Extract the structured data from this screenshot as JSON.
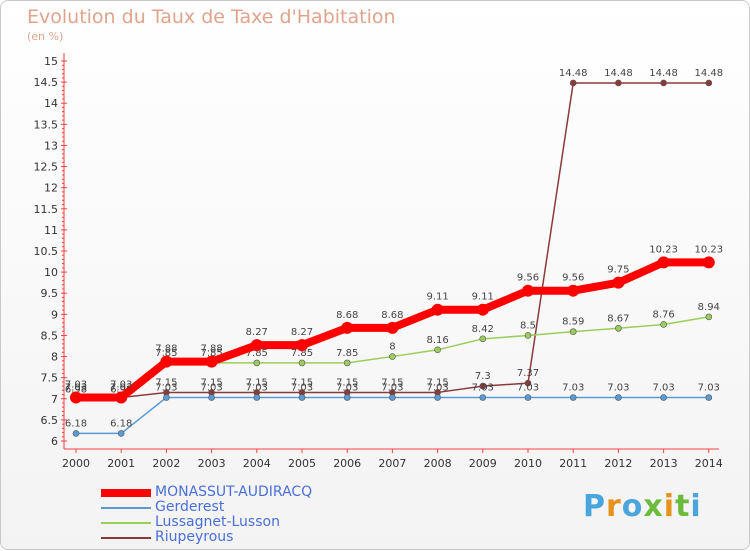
{
  "header": {
    "title": "Evolution du Taux de Taxe d'Habitation",
    "unit": "(en %)"
  },
  "brand": {
    "letters": [
      {
        "ch": "P",
        "color": "#4aa5dc"
      },
      {
        "ch": "r",
        "color": "#e8921e"
      },
      {
        "ch": "o",
        "color": "#4aa5dc"
      },
      {
        "ch": "x",
        "color": "#6dbb3c"
      },
      {
        "ch": "i",
        "color": "#e8921e"
      },
      {
        "ch": "t",
        "color": "#6dbb3c"
      },
      {
        "ch": "i",
        "color": "#4aa5dc"
      }
    ]
  },
  "chart_data": {
    "type": "line",
    "title": "Evolution du Taux de Taxe d'Habitation",
    "ylabel": "(en %)",
    "xlabel": "",
    "x": [
      "2000",
      "2001",
      "2002",
      "2003",
      "2004",
      "2005",
      "2006",
      "2007",
      "2008",
      "2009",
      "2010",
      "2011",
      "2012",
      "2013",
      "2014"
    ],
    "ylim": [
      6,
      15
    ],
    "yticks": [
      6,
      6.5,
      7,
      7.5,
      8,
      8.5,
      9,
      9.5,
      10,
      10.5,
      11,
      11.5,
      12,
      12.5,
      13,
      13.5,
      14,
      14.5,
      15
    ],
    "ytick_labels": [
      "6",
      "6.5",
      "7",
      "7.5",
      "8",
      "8.5",
      "9",
      "9.5",
      "10",
      "10.5",
      "11",
      "11.5",
      "12",
      "12.5",
      "13",
      "13.5",
      "14",
      "14.5",
      "15"
    ],
    "grid": false,
    "legend_position": "bottom-left",
    "series": [
      {
        "name": "MONASSUT-AUDIRACQ",
        "color": "#ff0000",
        "emphasis": true,
        "values": [
          7.03,
          7.03,
          7.88,
          7.88,
          8.27,
          8.27,
          8.68,
          8.68,
          9.11,
          9.11,
          9.56,
          9.56,
          9.75,
          10.23,
          10.23
        ],
        "labels": [
          "7.03",
          "7.03",
          "7.88",
          "7.88",
          "8.27",
          "8.27",
          "8.68",
          "8.68",
          "9.11",
          "9.11",
          "9.56",
          "9.56",
          "9.75",
          "10.23",
          "10.23"
        ]
      },
      {
        "name": "Gerderest",
        "color": "#5b9bd5",
        "values": [
          6.18,
          6.18,
          7.03,
          7.03,
          7.03,
          7.03,
          7.03,
          7.03,
          7.03,
          7.03,
          7.03,
          7.03,
          7.03,
          7.03,
          7.03
        ],
        "labels": [
          "6.18",
          "6.18",
          "7.03",
          "7.03",
          "7.03",
          "7.03",
          "7.03",
          "7.03",
          "7.03",
          "7.03",
          "7.03",
          "7.03",
          "7.03",
          "7.03",
          "7.03"
        ]
      },
      {
        "name": "Lussagnet-Lusson",
        "color": "#9acd5a",
        "values": [
          6.98,
          6.98,
          7.85,
          7.85,
          7.85,
          7.85,
          7.85,
          8,
          8.16,
          8.42,
          8.5,
          8.59,
          8.67,
          8.76,
          8.94
        ],
        "labels": [
          "6.98",
          "6.98",
          "7.85",
          "7.85",
          "7.85",
          "7.85",
          "7.85",
          "8",
          "8.16",
          "8.42",
          "8.5",
          "8.59",
          "8.67",
          "8.76",
          "8.94"
        ]
      },
      {
        "name": "Riupeyrous",
        "color": "#8b3a3a",
        "values": [
          7.03,
          7.03,
          7.15,
          7.15,
          7.15,
          7.15,
          7.15,
          7.15,
          7.15,
          7.3,
          7.37,
          14.48,
          14.48,
          14.48,
          14.48
        ],
        "labels": [
          "7.03",
          "7.03",
          "7.15",
          "7.15",
          "7.15",
          "7.15",
          "7.15",
          "7.15",
          "7.15",
          "7.3",
          "7.37",
          "14.48",
          "14.48",
          "14.48",
          "14.48"
        ]
      }
    ]
  }
}
